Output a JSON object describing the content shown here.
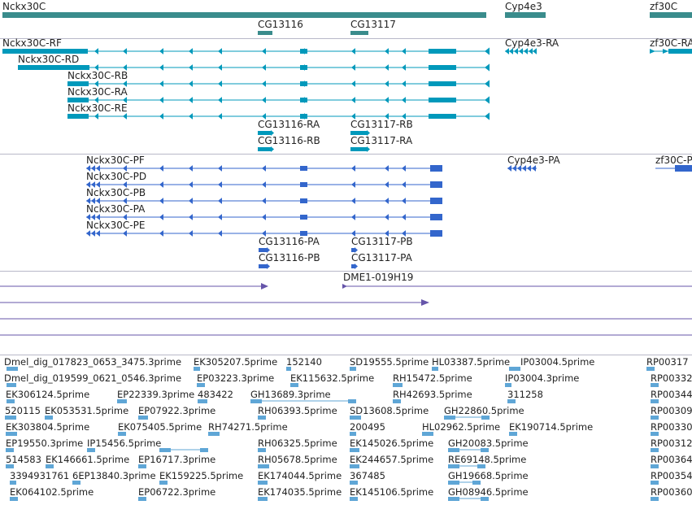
{
  "colors": {
    "gene": "#3a8c8c",
    "transcript": "#0099bb",
    "protein": "#3366cc",
    "bac": "#6655aa",
    "est": "#5fa6d6",
    "separator": "#b8b8c8"
  },
  "tracks": {
    "genes": {
      "nckx30c": "Nckx30C",
      "cyp4e3": "Cyp4e3",
      "zf30c": "zf30C",
      "cg13116": "CG13116",
      "cg13117": "CG13117"
    },
    "transcripts": {
      "rf": "Nckx30C-RF",
      "rd": "Nckx30C-RD",
      "rb": "Nckx30C-RB",
      "ra": "Nckx30C-RA",
      "re": "Nckx30C-RE",
      "cyp_ra": "Cyp4e3-RA",
      "zf_ra": "zf30C-RA",
      "cg13116_ra": "CG13116-RA",
      "cg13116_rb": "CG13116-RB",
      "cg13117_rb": "CG13117-RB",
      "cg13117_ra": "CG13117-RA"
    },
    "proteins": {
      "pf": "Nckx30C-PF",
      "pd": "Nckx30C-PD",
      "pb": "Nckx30C-PB",
      "pa": "Nckx30C-PA",
      "pe": "Nckx30C-PE",
      "cyp_pa": "Cyp4e3-PA",
      "zf_pf": "zf30C-P",
      "cg13116_pa": "CG13116-PA",
      "cg13116_pb": "CG13116-PB",
      "cg13117_pb": "CG13117-PB",
      "cg13117_pa": "CG13117-PA"
    },
    "bac": {
      "clone": "DME1-019H19"
    },
    "est_rows": [
      [
        "Dmel_dig_017823_0653_3475.3prime",
        "EK305207.5prime",
        "152140",
        "SD19555.5prime",
        "HL03387.5prime",
        "IP03004.5prime",
        "RP00317"
      ],
      [
        "Dmel_dig_019599_0621_0546.3prime",
        "EP03223.3prime",
        "EK115632.5prime",
        "RH15472.5prime",
        "IP03004.3prime",
        "RP00332"
      ],
      [
        "EK306124.5prime",
        "EP22339.3prime",
        "483422",
        "GH13689.3prime",
        "RH42693.5prime",
        "311258",
        "RP00344"
      ],
      [
        "520115",
        "EK053531.5prime",
        "EP07922.3prime",
        "RH06393.5prime",
        "SD13608.5prime",
        "GH22860.5prime",
        "RP00309"
      ],
      [
        "EK303804.5prime",
        "EK075405.5prime",
        "RH74271.5prime",
        "200495",
        "HL02962.5prime",
        "EK190714.5prime",
        "RP00330"
      ],
      [
        "EP19550.3prime",
        "IP15456.5prime",
        "RH06325.5prime",
        "EK145026.5prime",
        "GH20083.5prime",
        "RP00312"
      ],
      [
        "514583",
        "EK146661.5prime",
        "EP16717.3prime",
        "RH05678.5prime",
        "EK244657.5prime",
        "RE69148.5prime",
        "RP00364"
      ],
      [
        "3394931761",
        "6EP13840.3prime",
        "EK159225.5prime",
        "EK174044.5prime",
        "367485",
        "GH19668.5prime",
        "RP00354"
      ],
      [
        "EK064102.5prime",
        "EP06722.3prime",
        "EK174035.5prime",
        "EK145106.5prime",
        "GH08946.5prime",
        "RP00360"
      ]
    ]
  }
}
